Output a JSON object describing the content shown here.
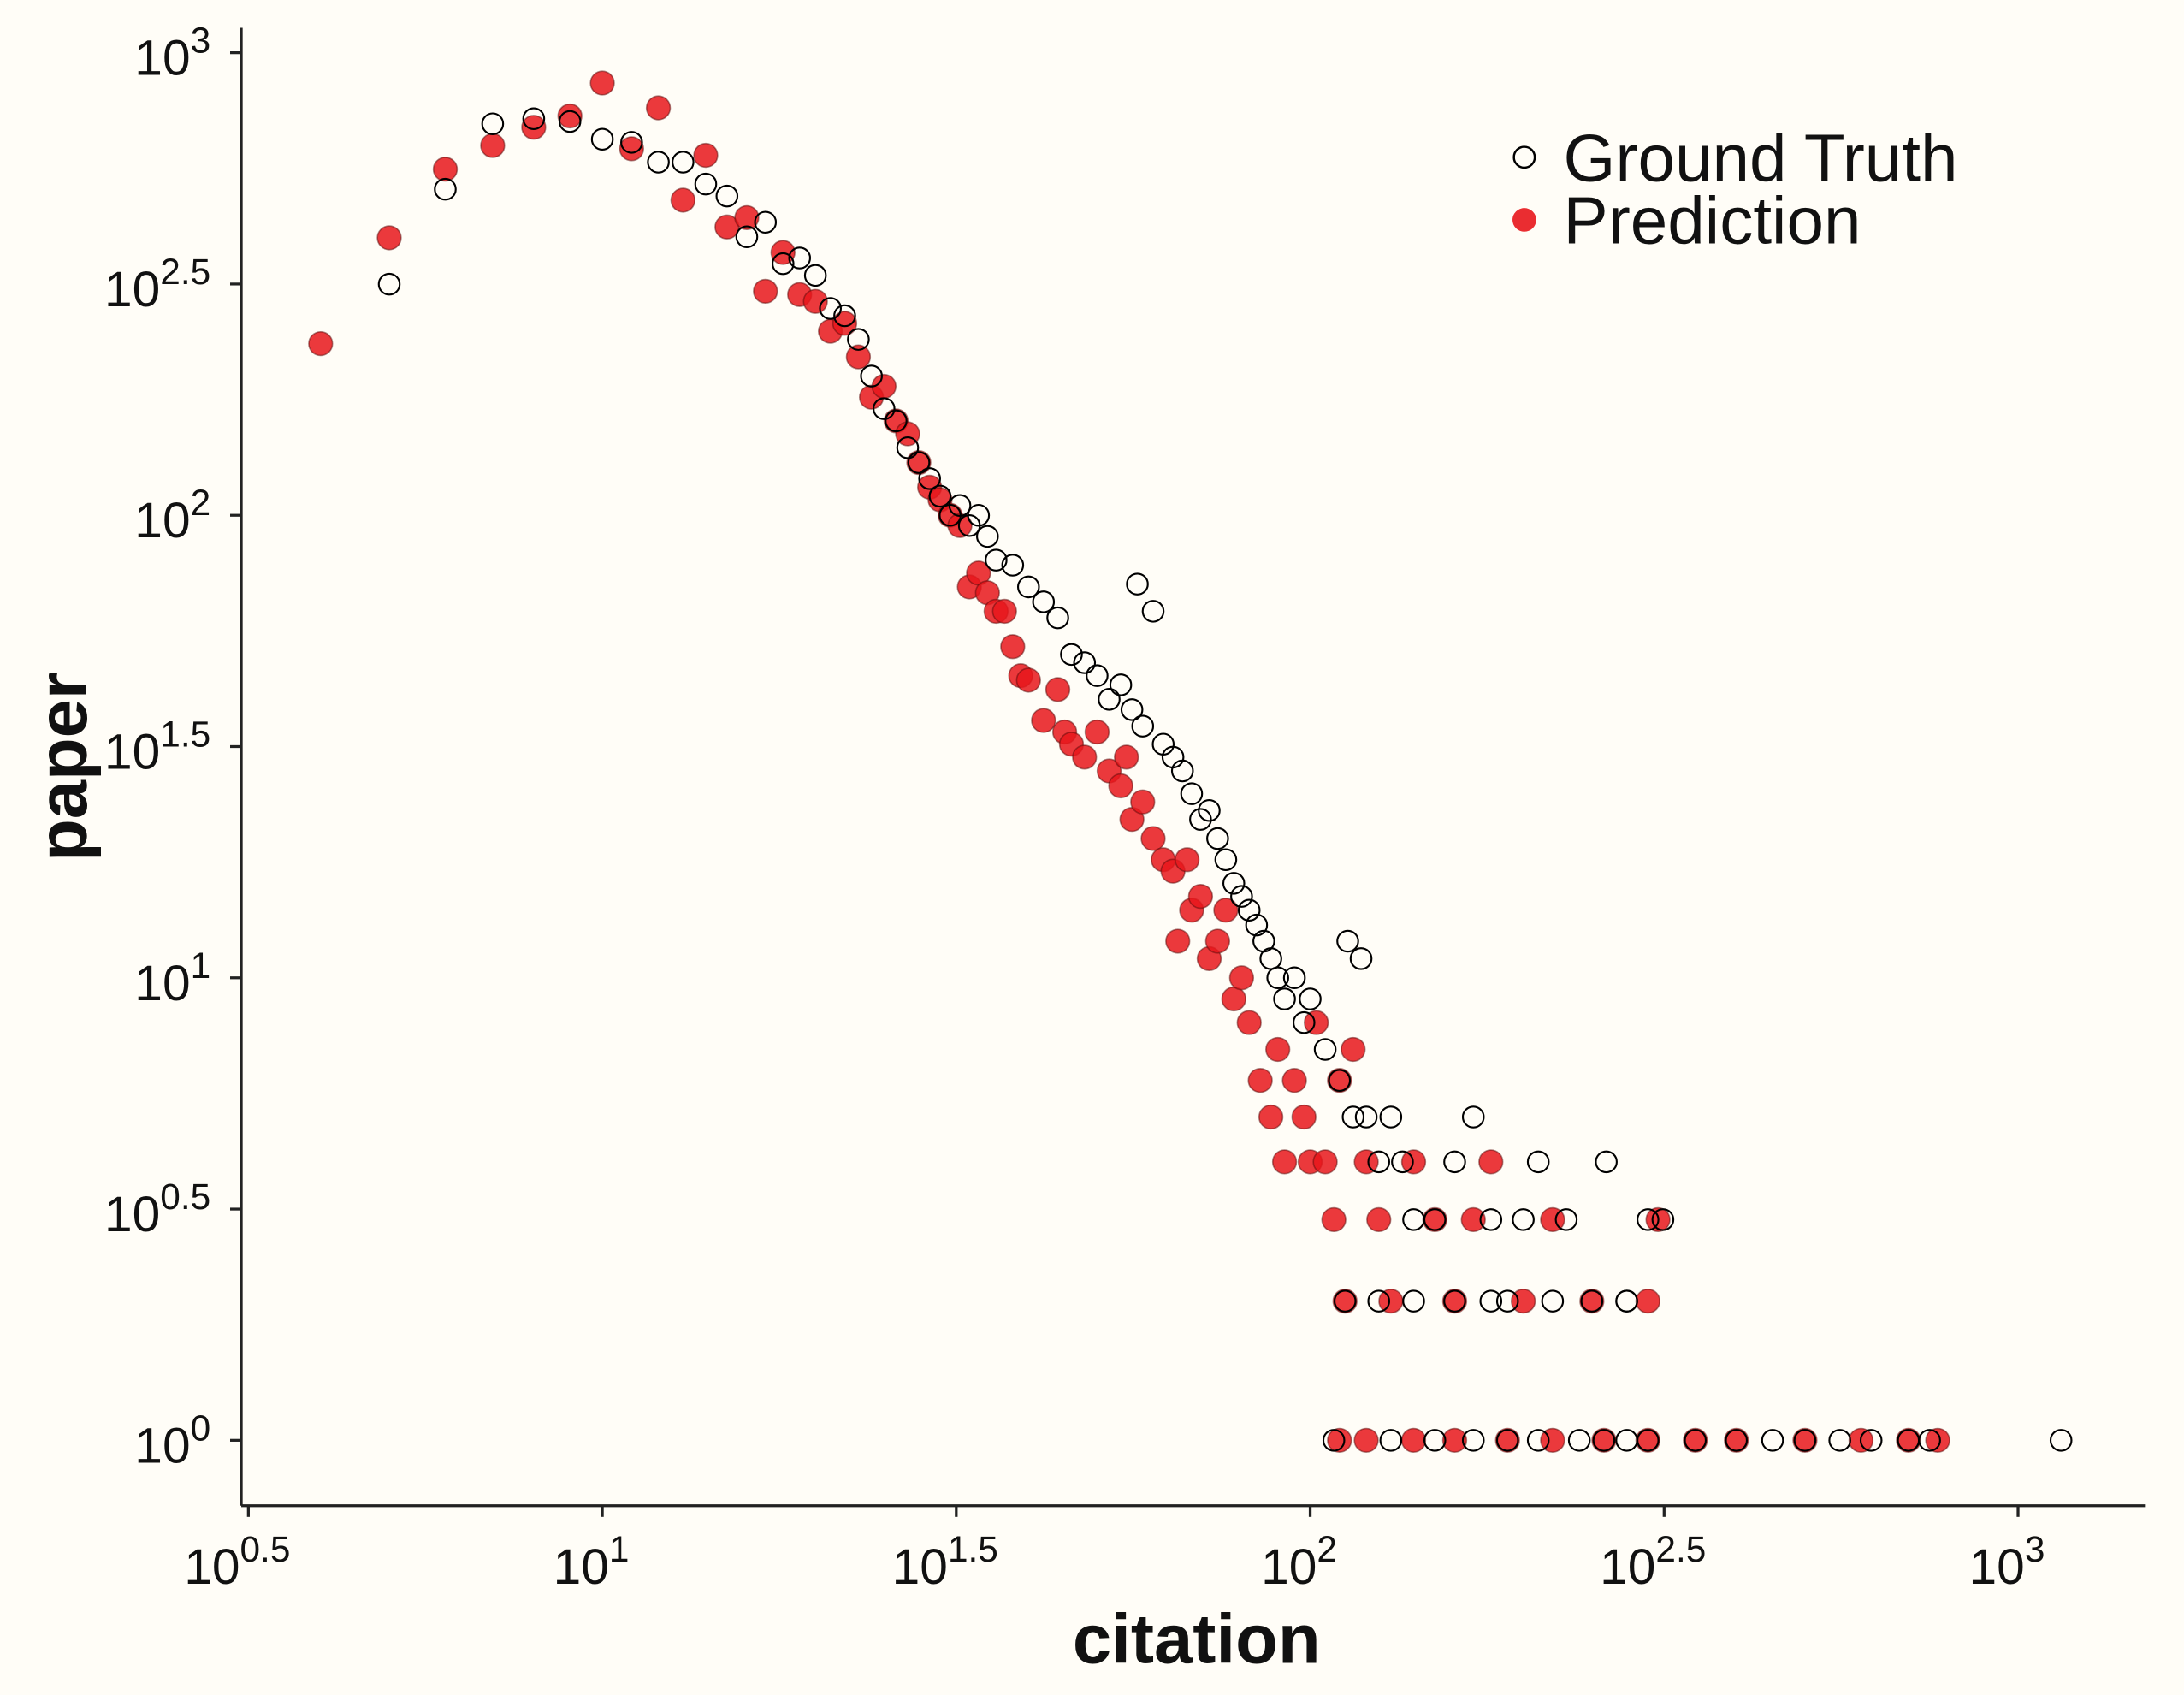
{
  "chart_data": {
    "type": "scatter",
    "xlabel": "citation",
    "ylabel": "paper",
    "log_x": true,
    "log_y": true,
    "grid": false,
    "legend": "upper right",
    "xlim": [
      3.09,
      1511
    ],
    "ylim": [
      0.722,
      1132
    ],
    "xticks": [
      {
        "value": 3.1623,
        "label": "10^0.5"
      },
      {
        "value": 10,
        "label": "10^1"
      },
      {
        "value": 31.623,
        "label": "10^1.5"
      },
      {
        "value": 100,
        "label": "10^2"
      },
      {
        "value": 316.23,
        "label": "10^2.5"
      },
      {
        "value": 1000,
        "label": "10^3"
      }
    ],
    "yticks": [
      {
        "value": 1,
        "label": "10^0"
      },
      {
        "value": 3.1623,
        "label": "10^0.5"
      },
      {
        "value": 10,
        "label": "10^1"
      },
      {
        "value": 31.623,
        "label": "10^1.5"
      },
      {
        "value": 100,
        "label": "10^2"
      },
      {
        "value": 316.23,
        "label": "10^2.5"
      },
      {
        "value": 1000,
        "label": "10^3"
      }
    ],
    "series": [
      {
        "name": "Ground Truth",
        "color": "#000000",
        "filled": false,
        "x": [
          5,
          6,
          7,
          8,
          9,
          10,
          11,
          12,
          13,
          14,
          15,
          16,
          17,
          18,
          19,
          20,
          21,
          22,
          23,
          24,
          25,
          26,
          27,
          28,
          29,
          30,
          31,
          32,
          33,
          34,
          35,
          36,
          38,
          40,
          42,
          44,
          46,
          48,
          50,
          52,
          54,
          56,
          57,
          58,
          60,
          62,
          64,
          66,
          68,
          70,
          72,
          74,
          76,
          78,
          80,
          82,
          84,
          86,
          88,
          90,
          92,
          95,
          98,
          100,
          105,
          113,
          118,
          110,
          115,
          120,
          125,
          130,
          135,
          140,
          150,
          160,
          170,
          180,
          190,
          200,
          210,
          230,
          250,
          262,
          280,
          300,
          315,
          112,
          125,
          140,
          160,
          180,
          220,
          280,
          108,
          130,
          150,
          170,
          190,
          210,
          240,
          260,
          280,
          300,
          350,
          400,
          450,
          500,
          560,
          620,
          700,
          750,
          1150
        ],
        "y": [
          316,
          507,
          702,
          720,
          710,
          650,
          640,
          580,
          580,
          520,
          490,
          400,
          430,
          350,
          360,
          330,
          280,
          270,
          240,
          200,
          170,
          160,
          140,
          130,
          120,
          110,
          100,
          105,
          95,
          100,
          90,
          80,
          78,
          70,
          65,
          60,
          50,
          48,
          45,
          40,
          43,
          38,
          71,
          35,
          62,
          32,
          30,
          28,
          25,
          22,
          23,
          20,
          18,
          16,
          15,
          14,
          13,
          12,
          11,
          10,
          9,
          10,
          8,
          9,
          7,
          12,
          11,
          6,
          5,
          5,
          4,
          5,
          4,
          3,
          3,
          4,
          5,
          3,
          2,
          3,
          4,
          3,
          2,
          4,
          2,
          3,
          3,
          2,
          2,
          2,
          2,
          2,
          2,
          2,
          1,
          1,
          1,
          1,
          1,
          1,
          1,
          1,
          1,
          1,
          1,
          1,
          1,
          1,
          1,
          1,
          1,
          1,
          1
        ]
      },
      {
        "name": "Prediction",
        "color": "#e8161b",
        "filled": true,
        "x": [
          4,
          5,
          6,
          7,
          8,
          9,
          10,
          11,
          12,
          13,
          14,
          15,
          16,
          17,
          18,
          19,
          20,
          21,
          22,
          23,
          24,
          25,
          26,
          27,
          28,
          29,
          30,
          31,
          32,
          33,
          34,
          35,
          36,
          37,
          38,
          39,
          40,
          42,
          44,
          45,
          46,
          48,
          50,
          52,
          54,
          55,
          56,
          58,
          60,
          62,
          64,
          65,
          67,
          68,
          70,
          72,
          74,
          76,
          78,
          80,
          82,
          85,
          88,
          90,
          92,
          95,
          98,
          100,
          102,
          105,
          108,
          110,
          112,
          115,
          120,
          125,
          130,
          140,
          150,
          160,
          170,
          180,
          200,
          220,
          250,
          300,
          310,
          110,
          120,
          140,
          160,
          190,
          220,
          260,
          300,
          350,
          400,
          500,
          600,
          700,
          770
        ],
        "y": [
          235,
          398,
          560,
          630,
          690,
          730,
          860,
          620,
          760,
          480,
          600,
          420,
          440,
          305,
          370,
          300,
          290,
          250,
          260,
          220,
          180,
          190,
          160,
          150,
          130,
          115,
          108,
          100,
          95,
          70,
          75,
          68,
          62,
          62,
          52,
          45,
          44,
          36,
          42,
          34,
          32,
          30,
          34,
          28,
          26,
          30,
          22,
          24,
          20,
          18,
          17,
          12,
          18,
          14,
          15,
          11,
          12,
          14,
          9,
          10,
          8,
          6,
          5,
          7,
          4,
          6,
          5,
          4,
          8,
          4,
          3,
          6,
          2,
          7,
          4,
          3,
          2,
          4,
          3,
          2,
          3,
          4,
          2,
          3,
          2,
          2,
          3,
          1,
          1,
          1,
          1,
          1,
          1,
          1,
          1,
          1,
          1,
          1,
          1,
          1,
          1
        ]
      }
    ]
  }
}
